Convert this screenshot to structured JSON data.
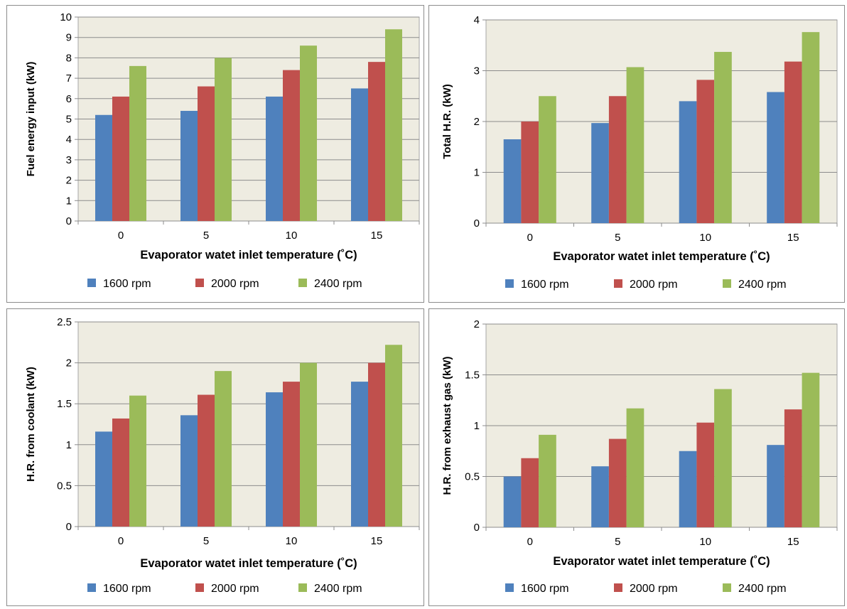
{
  "chart_data": [
    {
      "type": "bar",
      "categories": [
        "0",
        "5",
        "10",
        "15"
      ],
      "ylabel": "Fuel energy input (kW)",
      "xlabel": "Evaporator watet inlet temperature (˚C)",
      "ylim": [
        0,
        10
      ],
      "yticks": [
        "0",
        "1",
        "2",
        "3",
        "4",
        "5",
        "6",
        "7",
        "8",
        "9",
        "10"
      ],
      "grid": true,
      "legend_position": "bottom",
      "series": [
        {
          "name": "1600 rpm",
          "color": "#4f81bd",
          "values": [
            5.2,
            5.4,
            6.1,
            6.5
          ]
        },
        {
          "name": "2000 rpm",
          "color": "#c0504d",
          "values": [
            6.1,
            6.6,
            7.4,
            7.8
          ]
        },
        {
          "name": "2400 rpm",
          "color": "#9bbb59",
          "values": [
            7.6,
            8.0,
            8.6,
            9.4
          ]
        }
      ]
    },
    {
      "type": "bar",
      "categories": [
        "0",
        "5",
        "10",
        "15"
      ],
      "ylabel": "Total H.R. (kW)",
      "xlabel": "Evaporator watet inlet temperature (˚C)",
      "ylim": [
        0,
        4
      ],
      "yticks": [
        "0",
        "1",
        "2",
        "3",
        "4"
      ],
      "grid": true,
      "legend_position": "bottom",
      "series": [
        {
          "name": "1600 rpm",
          "color": "#4f81bd",
          "values": [
            1.65,
            1.97,
            2.4,
            2.58
          ]
        },
        {
          "name": "2000 rpm",
          "color": "#c0504d",
          "values": [
            2.0,
            2.5,
            2.82,
            3.18
          ]
        },
        {
          "name": "2400 rpm",
          "color": "#9bbb59",
          "values": [
            2.5,
            3.07,
            3.37,
            3.76
          ]
        }
      ]
    },
    {
      "type": "bar",
      "categories": [
        "0",
        "5",
        "10",
        "15"
      ],
      "ylabel": "H.R. from coolant (kW)",
      "xlabel": "Evaporator watet inlet temperature (˚C)",
      "ylim": [
        0,
        2.5
      ],
      "yticks": [
        "0",
        "0.5",
        "1",
        "1.5",
        "2",
        "2.5"
      ],
      "grid": true,
      "legend_position": "bottom",
      "series": [
        {
          "name": "1600 rpm",
          "color": "#4f81bd",
          "values": [
            1.16,
            1.36,
            1.64,
            1.77
          ]
        },
        {
          "name": "2000 rpm",
          "color": "#c0504d",
          "values": [
            1.32,
            1.61,
            1.77,
            2.0
          ]
        },
        {
          "name": "2400 rpm",
          "color": "#9bbb59",
          "values": [
            1.6,
            1.9,
            2.0,
            2.22
          ]
        }
      ]
    },
    {
      "type": "bar",
      "categories": [
        "0",
        "5",
        "10",
        "15"
      ],
      "ylabel": "H.R. from exhaust gas (kW)",
      "xlabel": "Evaporator watet inlet temperature (˚C)",
      "ylim": [
        0,
        2
      ],
      "yticks": [
        "0",
        "0.5",
        "1",
        "1.5",
        "2"
      ],
      "grid": true,
      "legend_position": "bottom",
      "series": [
        {
          "name": "1600 rpm",
          "color": "#4f81bd",
          "values": [
            0.5,
            0.6,
            0.75,
            0.81
          ]
        },
        {
          "name": "2000 rpm",
          "color": "#c0504d",
          "values": [
            0.68,
            0.87,
            1.03,
            1.16
          ]
        },
        {
          "name": "2400 rpm",
          "color": "#9bbb59",
          "values": [
            0.91,
            1.17,
            1.36,
            1.52
          ]
        }
      ]
    }
  ]
}
